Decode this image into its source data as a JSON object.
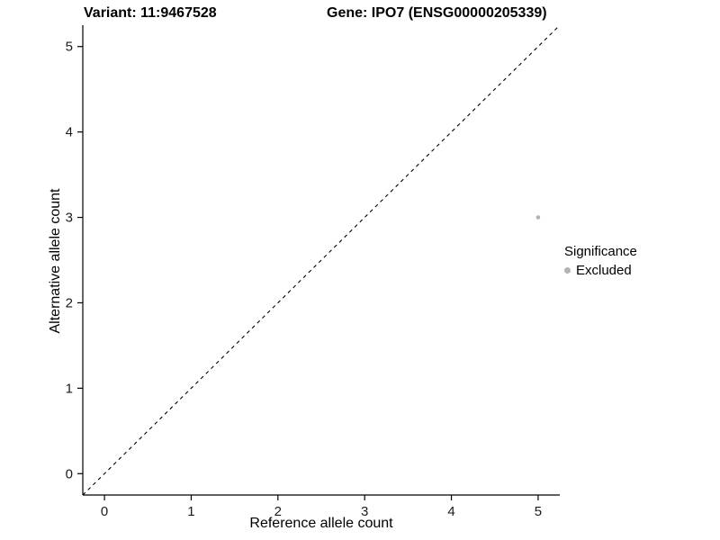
{
  "chart_data": {
    "type": "scatter",
    "title_left": "Variant: 11:9467528",
    "title_right": "Gene: IPO7 (ENSG00000205339)",
    "xlabel": "Reference allele count",
    "ylabel": "Alternative allele count",
    "xlim": [
      -0.25,
      5.25
    ],
    "ylim": [
      -0.25,
      5.25
    ],
    "x_ticks": [
      0,
      1,
      2,
      3,
      4,
      5
    ],
    "y_ticks": [
      0,
      1,
      2,
      3,
      4,
      5
    ],
    "grid": false,
    "points": [
      {
        "x": 5,
        "y": 3,
        "series": "Excluded",
        "color": "#b3b3b3"
      }
    ],
    "reference_line": {
      "type": "identity",
      "style": "dashed",
      "color": "#000000",
      "from": [
        -0.25,
        -0.25
      ],
      "to": [
        5.25,
        5.25
      ]
    },
    "legend": {
      "title": "Significance",
      "position": "right",
      "entries": [
        {
          "label": "Excluded",
          "color": "#b3b3b3"
        }
      ]
    },
    "colors": {
      "axis": "#000000",
      "tick_text": "#1a1a1a",
      "background": "#ffffff"
    }
  }
}
